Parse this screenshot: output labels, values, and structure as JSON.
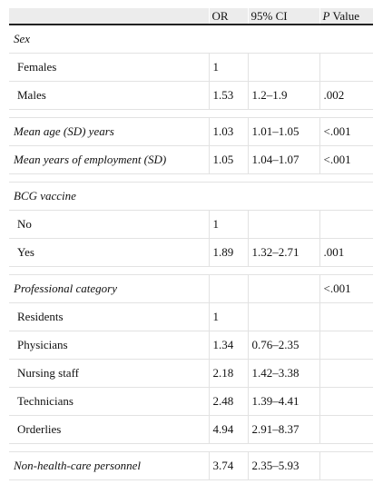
{
  "header": {
    "col1": "",
    "col2": "OR",
    "col3": "95% CI",
    "col4_italic": "P",
    "col4_rest": " Value"
  },
  "rows": {
    "sex": {
      "label": "Sex"
    },
    "females": {
      "label": "Females",
      "or": "1",
      "ci": "",
      "p": ""
    },
    "males": {
      "label": "Males",
      "or": "1.53",
      "ci": "1.2–1.9",
      "p": ".002"
    },
    "mean_age": {
      "label_a": "Mean age (",
      "label_b": "SD",
      "label_c": ") years",
      "or": "1.03",
      "ci": "1.01–1.05",
      "p": "<.001"
    },
    "mean_years": {
      "label_a": "Mean years of employment (",
      "label_b": "SD",
      "label_c": ")",
      "or": "1.05",
      "ci": "1.04–1.07",
      "p": "<.001"
    },
    "bcg": {
      "label": "BCG vaccine"
    },
    "bcg_no": {
      "label": "No",
      "or": "1",
      "ci": "",
      "p": ""
    },
    "bcg_yes": {
      "label": "Yes",
      "or": "1.89",
      "ci": "1.32–2.71",
      "p": ".001"
    },
    "prof": {
      "label": "Professional category",
      "or": "",
      "ci": "",
      "p": "<.001"
    },
    "residents": {
      "label": "Residents",
      "or": "1",
      "ci": "",
      "p": ""
    },
    "physicians": {
      "label": "Physicians",
      "or": "1.34",
      "ci": "0.76–2.35",
      "p": ""
    },
    "nursing": {
      "label": "Nursing staff",
      "or": "2.18",
      "ci": "1.42–3.38",
      "p": ""
    },
    "technicians": {
      "label": "Technicians",
      "or": "2.48",
      "ci": "1.39–4.41",
      "p": ""
    },
    "orderlies": {
      "label": "Orderlies",
      "or": "4.94",
      "ci": "2.91–8.37",
      "p": ""
    },
    "nonhealth": {
      "label": "Non-health-care personnel",
      "or": "3.74",
      "ci": "2.35–5.93",
      "p": ""
    }
  }
}
